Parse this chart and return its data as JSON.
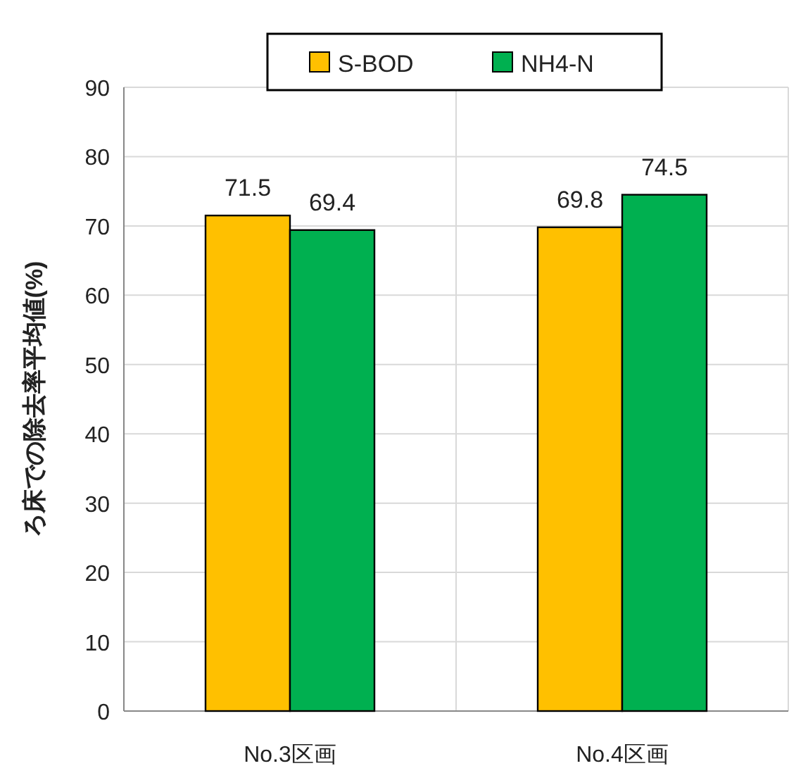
{
  "chart_data": {
    "type": "bar",
    "ylabel": "ろ床での除去率平均値(%)",
    "categories": [
      "No.3区画",
      "No.4区画"
    ],
    "series": [
      {
        "name": "S-BOD",
        "color": "#ffc000",
        "values": [
          71.5,
          69.8
        ]
      },
      {
        "name": "NH4-N",
        "color": "#00b050",
        "values": [
          69.4,
          74.5
        ]
      }
    ],
    "ylim": [
      0,
      90
    ],
    "yticks": [
      0,
      10,
      20,
      30,
      40,
      50,
      60,
      70,
      80,
      90
    ],
    "grid": true,
    "legend": "top",
    "data_labels": true
  }
}
